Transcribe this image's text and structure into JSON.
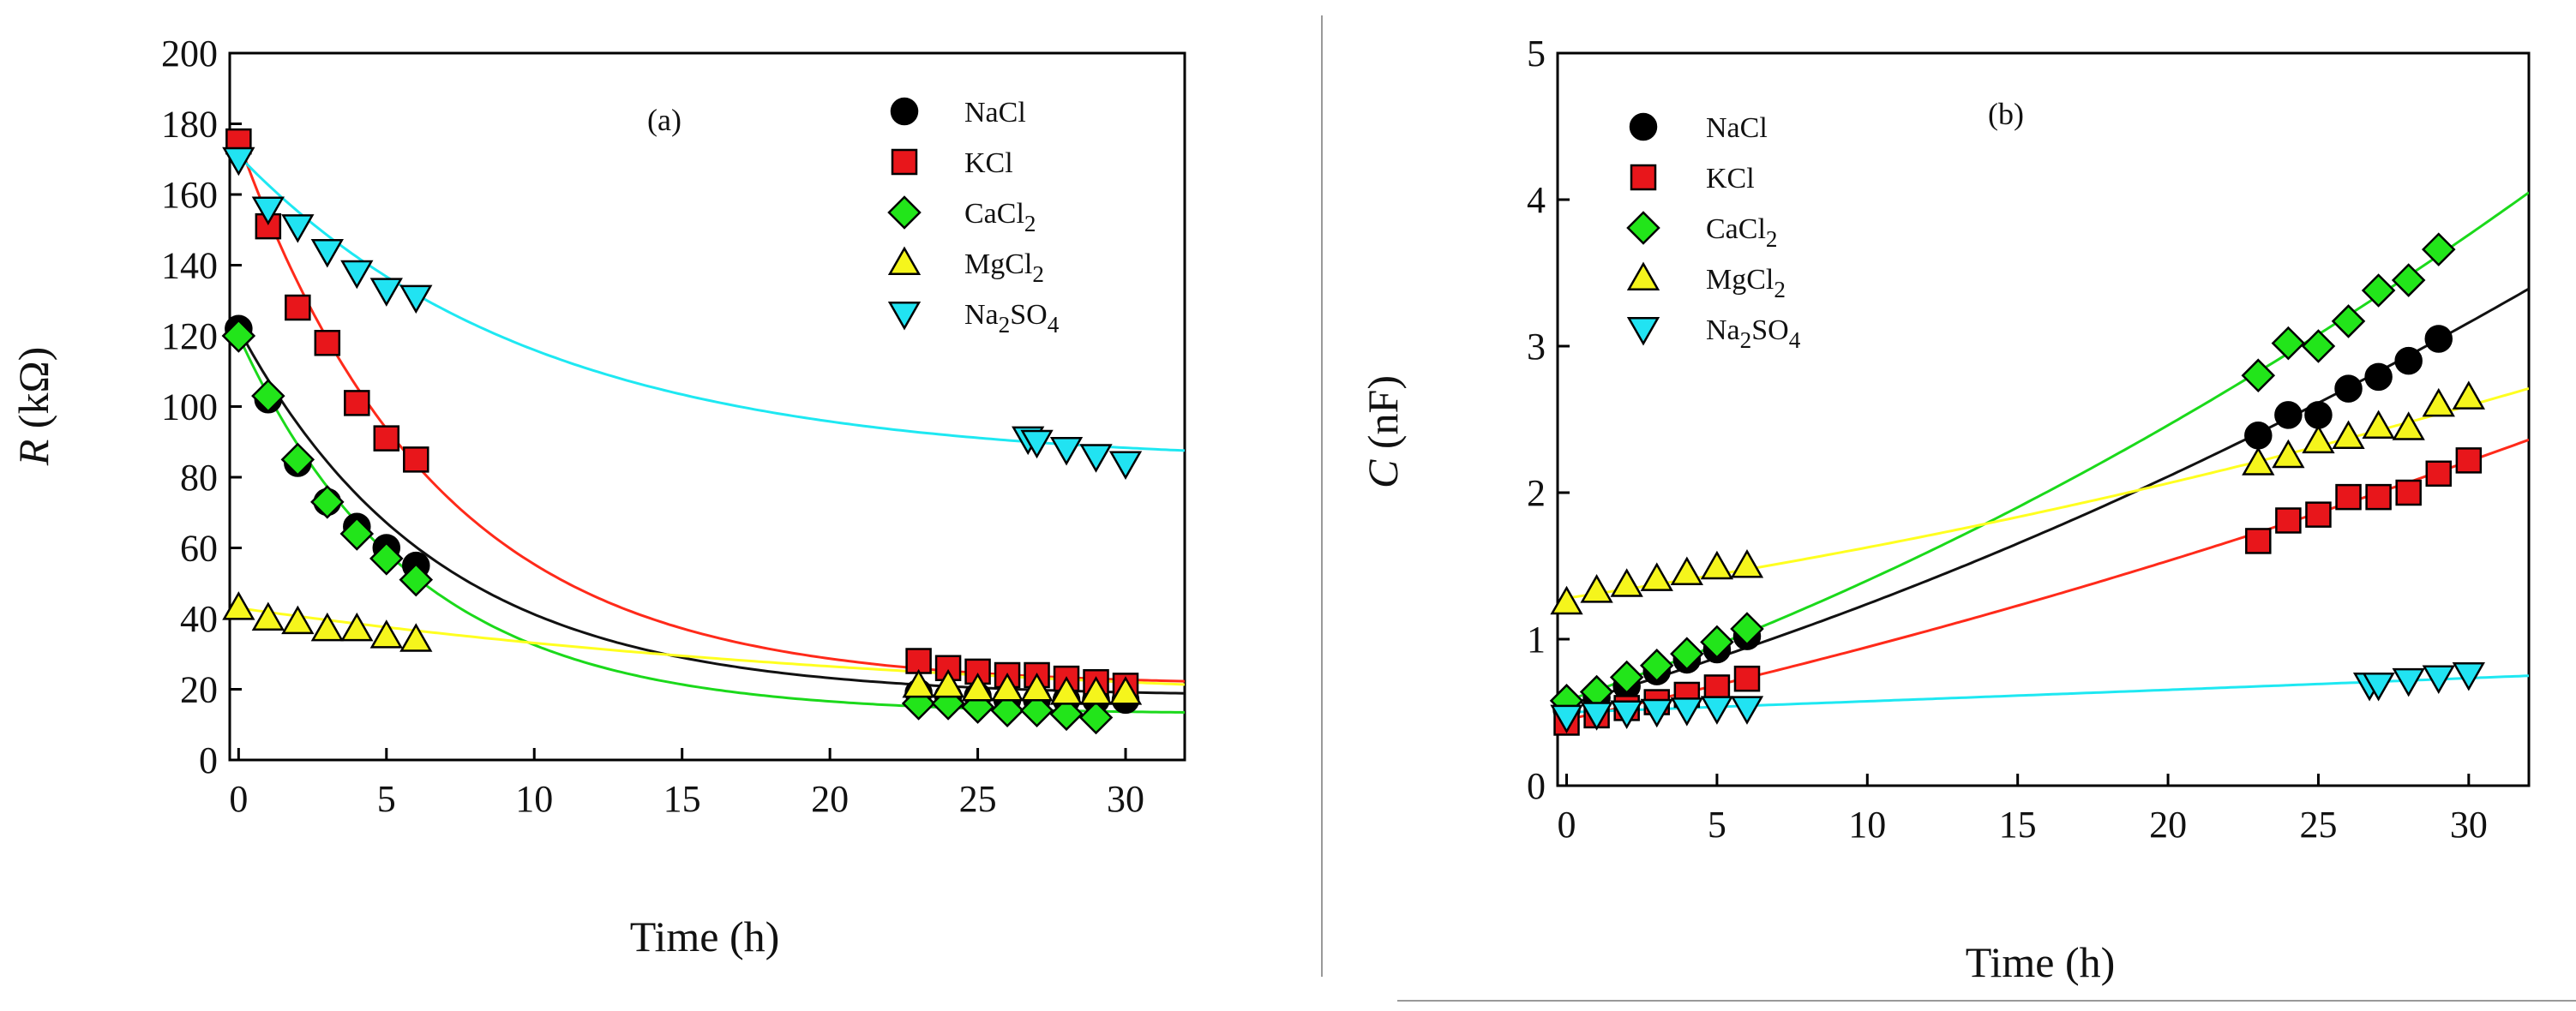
{
  "chart_data": [
    {
      "type": "scatter",
      "panel": "(a)",
      "title": "",
      "xlabel": "Time (h)",
      "ylabel_italic": "R",
      "ylabel_rest": " (kΩ)",
      "xlim": [
        -0.3,
        32
      ],
      "ylim": [
        0,
        200
      ],
      "xticks": [
        0,
        5,
        10,
        15,
        20,
        25,
        30
      ],
      "yticks": [
        0,
        20,
        40,
        60,
        80,
        100,
        120,
        140,
        160,
        180,
        200
      ],
      "legend_position": "top-right",
      "series": [
        {
          "name": "NaCl",
          "name_base": "NaCl",
          "name_sub": "",
          "name_tail": "",
          "marker": "circle",
          "color": "#000000",
          "fit_color": "#111111",
          "x": [
            0,
            1,
            2,
            3,
            4,
            5,
            6,
            23,
            24,
            25,
            26,
            27,
            28,
            29,
            30
          ],
          "y": [
            122,
            102,
            84,
            73,
            66,
            60,
            55,
            19,
            18,
            18,
            17,
            17,
            17,
            17,
            17
          ],
          "fit": {
            "a": 18,
            "b": 104,
            "k": 0.15
          }
        },
        {
          "name": "KCl",
          "name_base": "KCl",
          "name_sub": "",
          "name_tail": "",
          "marker": "square",
          "color": "#e8161b",
          "fit_color": "#ff2a1a",
          "x": [
            0,
            1,
            2,
            3,
            4,
            5,
            6,
            23,
            24,
            25,
            26,
            27,
            28,
            29,
            30
          ],
          "y": [
            175,
            151,
            128,
            118,
            101,
            91,
            85,
            28,
            26,
            25,
            24,
            24,
            23,
            22,
            21
          ],
          "fit": {
            "a": 21,
            "b": 154,
            "k": 0.15
          }
        },
        {
          "name": "CaCl2",
          "name_base": "CaCl",
          "name_sub": "2",
          "name_tail": "",
          "marker": "diamond",
          "color": "#22e51a",
          "fit_color": "#1bd91b",
          "x": [
            0,
            1,
            2,
            3,
            4,
            5,
            6,
            23,
            24,
            25,
            26,
            27,
            28,
            29
          ],
          "y": [
            120,
            103,
            85,
            73,
            64,
            57,
            51,
            16,
            16,
            15,
            14,
            14,
            13,
            12
          ],
          "fit": {
            "a": 13,
            "b": 107,
            "k": 0.17
          }
        },
        {
          "name": "MgCl2",
          "name_base": "MgCl",
          "name_sub": "2",
          "name_tail": "",
          "marker": "triangle-up",
          "color": "#f5f51c",
          "fit_color": "#ffff20",
          "x": [
            0,
            1,
            2,
            3,
            4,
            5,
            6,
            23,
            24,
            25,
            26,
            27,
            28,
            29,
            30
          ],
          "y": [
            43,
            40,
            39,
            37,
            37,
            35,
            34,
            21,
            21,
            20,
            20,
            20,
            19,
            19,
            19
          ],
          "fit": {
            "a": 13,
            "b": 30,
            "k": 0.04
          }
        },
        {
          "name": "Na2SO4",
          "name_base": "Na",
          "name_sub": "2",
          "name_tail": "SO4",
          "marker": "triangle-down",
          "color": "#21e3f2",
          "fit_color": "#1ee8f2",
          "x": [
            0,
            1,
            2,
            3,
            4,
            5,
            6,
            26.7,
            27,
            28,
            29,
            30
          ],
          "y": [
            170,
            156,
            151,
            144,
            138,
            133,
            131,
            91,
            90,
            88,
            86,
            84
          ],
          "fit": {
            "a": 84,
            "b": 87,
            "k": 0.1
          }
        }
      ]
    },
    {
      "type": "scatter",
      "panel": "(b)",
      "title": "",
      "xlabel": "Time (h)",
      "ylabel_italic": "C",
      "ylabel_rest": " (nF)",
      "xlim": [
        -0.3,
        32
      ],
      "ylim": [
        0,
        5
      ],
      "xticks": [
        0,
        5,
        10,
        15,
        20,
        25,
        30
      ],
      "yticks": [
        0,
        1,
        2,
        3,
        4,
        5
      ],
      "legend_position": "top-left",
      "series": [
        {
          "name": "NaCl",
          "name_base": "NaCl",
          "name_sub": "",
          "name_tail": "",
          "marker": "circle",
          "color": "#000000",
          "fit_color": "#111111",
          "x": [
            0,
            1,
            2,
            3,
            4,
            5,
            6,
            23,
            24,
            25,
            26,
            27,
            28,
            29
          ],
          "y": [
            0.52,
            0.6,
            0.68,
            0.78,
            0.86,
            0.93,
            1.02,
            2.39,
            2.53,
            2.53,
            2.71,
            2.79,
            2.9,
            3.05
          ],
          "fit": {
            "a": 0.55,
            "b": 0.06,
            "c": 0.0009
          }
        },
        {
          "name": "KCl",
          "name_base": "KCl",
          "name_sub": "",
          "name_tail": "",
          "marker": "square",
          "color": "#e8161b",
          "fit_color": "#ff2a1a",
          "x": [
            0,
            1,
            2,
            3,
            4,
            5,
            6,
            23,
            24,
            25,
            26,
            27,
            28,
            29,
            30
          ],
          "y": [
            0.43,
            0.48,
            0.53,
            0.57,
            0.62,
            0.67,
            0.73,
            1.67,
            1.81,
            1.85,
            1.97,
            1.97,
            2.0,
            2.13,
            2.22
          ],
          "fit": {
            "a": 0.45,
            "b": 0.045,
            "c": 0.00046
          }
        },
        {
          "name": "CaCl2",
          "name_base": "CaCl",
          "name_sub": "2",
          "name_tail": "",
          "marker": "diamond",
          "color": "#22e51a",
          "fit_color": "#1bd91b",
          "x": [
            0,
            1,
            2,
            3,
            4,
            5,
            6,
            23,
            24,
            25,
            26,
            27,
            28,
            29
          ],
          "y": [
            0.58,
            0.64,
            0.74,
            0.82,
            0.9,
            0.98,
            1.07,
            2.8,
            3.02,
            3.0,
            3.17,
            3.38,
            3.45,
            3.66
          ],
          "fit": {
            "a": 0.58,
            "b": 0.07,
            "c": 0.0012
          }
        },
        {
          "name": "MgCl2",
          "name_base": "MgCl",
          "name_sub": "2",
          "name_tail": "",
          "marker": "triangle-up",
          "color": "#f5f51c",
          "fit_color": "#ffff20",
          "x": [
            0,
            1,
            2,
            3,
            4,
            5,
            6,
            23,
            24,
            25,
            26,
            27,
            28,
            29,
            30
          ],
          "y": [
            1.25,
            1.33,
            1.37,
            1.41,
            1.45,
            1.49,
            1.5,
            2.2,
            2.25,
            2.35,
            2.38,
            2.45,
            2.44,
            2.6,
            2.65
          ],
          "fit": {
            "a": 1.28,
            "b": 0.03,
            "c": 0.00046
          }
        },
        {
          "name": "Na2SO4",
          "name_base": "Na",
          "name_sub": "2",
          "name_tail": "SO4",
          "marker": "triangle-down",
          "color": "#21e3f2",
          "fit_color": "#1ee8f2",
          "x": [
            0,
            1,
            2,
            3,
            4,
            5,
            6,
            26.7,
            27,
            28,
            29,
            30
          ],
          "y": [
            0.47,
            0.49,
            0.5,
            0.51,
            0.52,
            0.53,
            0.53,
            0.69,
            0.69,
            0.72,
            0.74,
            0.76
          ],
          "fit": {
            "a": 0.5,
            "b": 0.0075,
            "c": 1e-05
          }
        }
      ]
    }
  ]
}
